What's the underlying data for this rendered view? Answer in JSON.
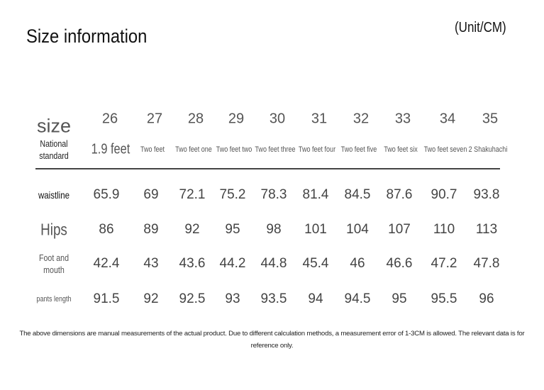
{
  "header": {
    "title": "Size information",
    "unit": "(Unit/CM)"
  },
  "table": {
    "size_label": "size",
    "sizes": [
      26,
      27,
      28,
      29,
      30,
      31,
      32,
      33,
      34,
      35
    ],
    "standard_label": "National standard",
    "standards": [
      "1.9 feet",
      "Two feet",
      "Two feet one",
      "Two feet two",
      "Two feet three",
      "Two feet four",
      "Two feet five",
      "Two feet six",
      "Two feet seven",
      "2 Shakuhachi"
    ],
    "rows": [
      {
        "label": "waistline",
        "values": [
          65.9,
          69,
          72.1,
          75.2,
          78.3,
          81.4,
          84.5,
          87.6,
          90.7,
          93.8
        ]
      },
      {
        "label": "Hips",
        "values": [
          86,
          89,
          92,
          95,
          98,
          101,
          104,
          107,
          110,
          113
        ]
      },
      {
        "label": "Foot and mouth",
        "values": [
          42.4,
          43,
          43.6,
          44.2,
          44.8,
          45.4,
          46,
          46.6,
          47.2,
          47.8
        ]
      },
      {
        "label": "pants length",
        "values": [
          91.5,
          92,
          92.5,
          93,
          93.5,
          94,
          94.5,
          95,
          95.5,
          96
        ]
      }
    ]
  },
  "footnote": "The above dimensions are manual measurements of the actual product. Due to different calculation methods, a measurement error of 1-3CM is allowed. The relevant data is for reference only."
}
